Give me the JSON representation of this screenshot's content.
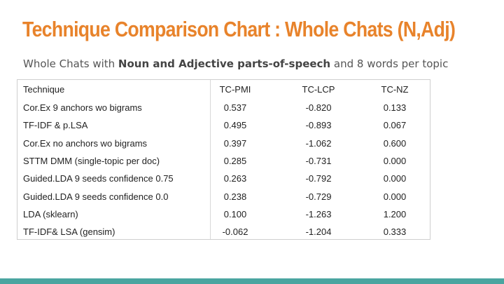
{
  "slide": {
    "title": "Technique Comparison Chart : Whole Chats (N,Adj)",
    "subtitle_before": "Whole Chats with ",
    "subtitle_bold": "Noun and Adjective parts-of-speech",
    "subtitle_after": " and 8 words per topic"
  },
  "table": {
    "headers": [
      "Technique",
      "TC-PMI",
      "TC-LCP",
      "TC-NZ"
    ],
    "rows": [
      [
        "Cor.Ex 9 anchors wo bigrams",
        "0.537",
        "-0.820",
        "0.133"
      ],
      [
        "TF-IDF & p.LSA",
        "0.495",
        "-0.893",
        "0.067"
      ],
      [
        "Cor.Ex no anchors wo bigrams",
        "0.397",
        "-1.062",
        "0.600"
      ],
      [
        "STTM DMM (single-topic per doc)",
        "0.285",
        "-0.731",
        "0.000"
      ],
      [
        "Guided.LDA 9 seeds confidence 0.75",
        "0.263",
        "-0.792",
        "0.000"
      ],
      [
        "Guided.LDA 9 seeds confidence 0.0",
        "0.238",
        "-0.729",
        "0.000"
      ],
      [
        "LDA (sklearn)",
        "0.100",
        "-1.263",
        "1.200"
      ],
      [
        "TF-IDF& LSA (gensim)",
        "-0.062",
        "-1.204",
        "0.333"
      ]
    ]
  },
  "colors": {
    "title": "#e8832b",
    "accent_bar": "#4aa5a0"
  }
}
